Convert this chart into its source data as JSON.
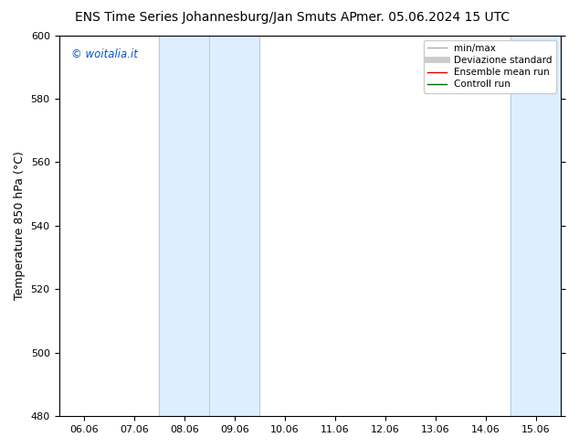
{
  "title_left": "ENS Time Series Johannesburg/Jan Smuts AP",
  "title_right": "mer. 05.06.2024 15 UTC",
  "ylabel": "Temperature 850 hPa (°C)",
  "x_labels": [
    "06.06",
    "07.06",
    "08.06",
    "09.06",
    "10.06",
    "11.06",
    "12.06",
    "13.06",
    "14.06",
    "15.06"
  ],
  "x_positions": [
    0,
    1,
    2,
    3,
    4,
    5,
    6,
    7,
    8,
    9
  ],
  "xlim": [
    -0.5,
    9.5
  ],
  "ylim": [
    480,
    600
  ],
  "yticks": [
    480,
    500,
    520,
    540,
    560,
    580,
    600
  ],
  "background_color": "#ffffff",
  "plot_bg_color": "#ffffff",
  "shaded_bands": [
    {
      "x_start": 1.5,
      "x_end": 3.5,
      "color": "#ddeeff"
    },
    {
      "x_start": 8.5,
      "x_end": 9.5,
      "color": "#ddeeff"
    }
  ],
  "vertical_lines_x": [
    1.5,
    2.5,
    3.5,
    8.5,
    9.5
  ],
  "vertical_line_color": "#aaccee",
  "watermark_text": "© woitalia.it",
  "watermark_color": "#0055cc",
  "legend_items": [
    {
      "label": "min/max",
      "color": "#aaaaaa",
      "lw": 1
    },
    {
      "label": "Deviazione standard",
      "color": "#cccccc",
      "lw": 5
    },
    {
      "label": "Ensemble mean run",
      "color": "#dd0000",
      "lw": 1
    },
    {
      "label": "Controll run",
      "color": "#006600",
      "lw": 1
    }
  ],
  "title_fontsize": 10,
  "axis_fontsize": 9,
  "tick_fontsize": 8,
  "legend_fontsize": 7.5
}
